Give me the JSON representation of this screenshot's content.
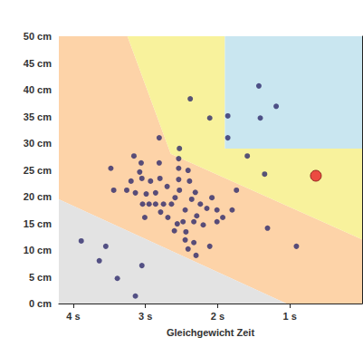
{
  "chart_data": {
    "type": "scatter",
    "x_label": "Gleichgewicht Zeit",
    "xlim": [
      4.2,
      0
    ],
    "xticks": [
      {
        "value": 4,
        "label": "4 s"
      },
      {
        "value": 3,
        "label": "3 s"
      },
      {
        "value": 2,
        "label": "2 s"
      },
      {
        "value": 1,
        "label": "1 s"
      }
    ],
    "ylim": [
      0,
      50
    ],
    "yticks": [
      {
        "value": 0,
        "label": "0 cm"
      },
      {
        "value": 5,
        "label": "5 cm"
      },
      {
        "value": 10,
        "label": "10 cm"
      },
      {
        "value": 15,
        "label": "15 cm"
      },
      {
        "value": 20,
        "label": "20 cm"
      },
      {
        "value": 25,
        "label": "25 cm"
      },
      {
        "value": 30,
        "label": "30 cm"
      },
      {
        "value": 35,
        "label": "35 cm"
      },
      {
        "value": 40,
        "label": "40 cm"
      },
      {
        "value": 45,
        "label": "45 cm"
      },
      {
        "value": 50,
        "label": "50 cm"
      }
    ],
    "grid": false,
    "marker": "circle",
    "regions": [
      {
        "color": "#fdd3a8",
        "polygon": [
          [
            4.2,
            50
          ],
          [
            3.25,
            50
          ],
          [
            2.65,
            28
          ],
          [
            0,
            12
          ],
          [
            0,
            0
          ],
          [
            1.05,
            0
          ],
          [
            4.2,
            19.5
          ]
        ]
      },
      {
        "color": "#e3e3e3",
        "polygon": [
          [
            4.2,
            19.5
          ],
          [
            4.2,
            0
          ],
          [
            1.05,
            0
          ]
        ]
      },
      {
        "color": "#f8f29c",
        "polygon": [
          [
            3.25,
            50
          ],
          [
            1.9,
            50
          ],
          [
            1.9,
            29
          ],
          [
            0,
            29
          ],
          [
            0,
            12
          ],
          [
            2.65,
            28
          ]
        ]
      },
      {
        "color": "#c9e6f0",
        "polygon": [
          [
            1.9,
            50
          ],
          [
            0,
            50
          ],
          [
            0,
            29
          ],
          [
            1.9,
            29
          ]
        ]
      }
    ],
    "series": [
      {
        "color": "#2e2a6b",
        "values": [
          [
            3.89,
            11.7
          ],
          [
            3.55,
            10.7
          ],
          [
            3.64,
            8.0
          ],
          [
            3.05,
            7.1
          ],
          [
            3.39,
            4.7
          ],
          [
            3.14,
            1.4
          ],
          [
            1.43,
            40.7
          ],
          [
            1.19,
            36.9
          ],
          [
            1.41,
            34.7
          ],
          [
            1.86,
            31.0
          ],
          [
            2.38,
            38.3
          ],
          [
            2.11,
            34.7
          ],
          [
            1.86,
            35.1
          ],
          [
            1.59,
            27.6
          ],
          [
            1.35,
            24.2
          ],
          [
            0.91,
            10.7
          ],
          [
            1.31,
            14.1
          ],
          [
            3.48,
            25.3
          ],
          [
            3.16,
            27.6
          ],
          [
            3.06,
            26.3
          ],
          [
            3.08,
            24.6
          ],
          [
            3.2,
            22.9
          ],
          [
            3.05,
            23.4
          ],
          [
            2.81,
            26.3
          ],
          [
            2.8,
            23.4
          ],
          [
            3.26,
            21.2
          ],
          [
            3.14,
            20.7
          ],
          [
            2.99,
            20.5
          ],
          [
            2.86,
            20.7
          ],
          [
            3.04,
            18.6
          ],
          [
            2.95,
            18.6
          ],
          [
            2.86,
            18.6
          ],
          [
            2.75,
            18.6
          ],
          [
            2.64,
            18.6
          ],
          [
            2.53,
            21.2
          ],
          [
            2.54,
            23.2
          ],
          [
            2.54,
            25.3
          ],
          [
            2.54,
            27.1
          ],
          [
            2.53,
            29.0
          ],
          [
            2.81,
            31.0
          ],
          [
            2.41,
            24.9
          ],
          [
            2.39,
            22.9
          ],
          [
            2.31,
            20.8
          ],
          [
            2.24,
            18.6
          ],
          [
            2.29,
            16.4
          ],
          [
            2.45,
            17.5
          ],
          [
            2.48,
            15.3
          ],
          [
            2.56,
            14.9
          ],
          [
            2.69,
            16.1
          ],
          [
            2.79,
            17.1
          ],
          [
            2.6,
            13.6
          ],
          [
            2.44,
            13.4
          ],
          [
            2.45,
            11.9
          ],
          [
            2.33,
            15.3
          ],
          [
            2.2,
            14.7
          ],
          [
            2.15,
            17.8
          ],
          [
            2.08,
            19.8
          ],
          [
            2.01,
            17.5
          ],
          [
            2.01,
            15.3
          ],
          [
            1.93,
            16.1
          ],
          [
            2.11,
            10.7
          ],
          [
            2.3,
            9.0
          ],
          [
            2.33,
            11.4
          ],
          [
            2.41,
            10.2
          ],
          [
            1.8,
            17.5
          ],
          [
            1.74,
            21.2
          ],
          [
            3.44,
            21.2
          ],
          [
            3.01,
            16.1
          ],
          [
            2.7,
            21.9
          ],
          [
            2.93,
            22.9
          ],
          [
            2.59,
            19.8
          ],
          [
            2.36,
            19.5
          ]
        ]
      },
      {
        "color": "#e8202a",
        "values": [
          [
            0.64,
            23.9
          ]
        ]
      }
    ]
  }
}
